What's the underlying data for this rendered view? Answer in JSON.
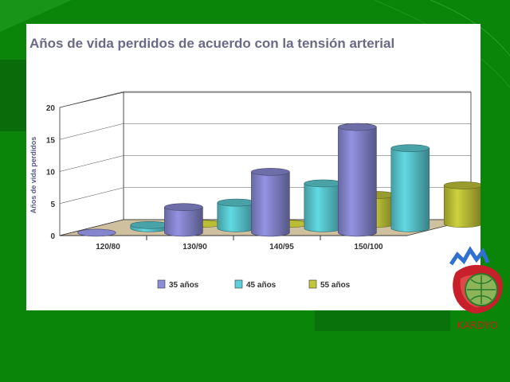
{
  "slide": {
    "background_color": "#0c8a0c",
    "logo_text": "KARDYO"
  },
  "chart_data": {
    "type": "bar",
    "style": "3d-cylinder",
    "title": "Años de vida perdidos de acuerdo con la tensión arterial",
    "xlabel": "",
    "ylabel": "Años de vida perdidos",
    "ylim": [
      0,
      20
    ],
    "yticks": [
      0,
      5,
      10,
      15,
      20
    ],
    "grid": true,
    "legend_position": "bottom",
    "categories": [
      "120/80",
      "130/90",
      "140/95",
      "150/100"
    ],
    "series": [
      {
        "name": "35 años",
        "color": "#8c8cd8",
        "values": [
          0,
          4,
          9.5,
          16.5
        ]
      },
      {
        "name": "45 años",
        "color": "#5cd0d8",
        "values": [
          0.5,
          4,
          7,
          12.5
        ]
      },
      {
        "name": "55 años",
        "color": "#c4c838",
        "values": [
          0,
          0,
          4.5,
          6
        ]
      }
    ]
  }
}
